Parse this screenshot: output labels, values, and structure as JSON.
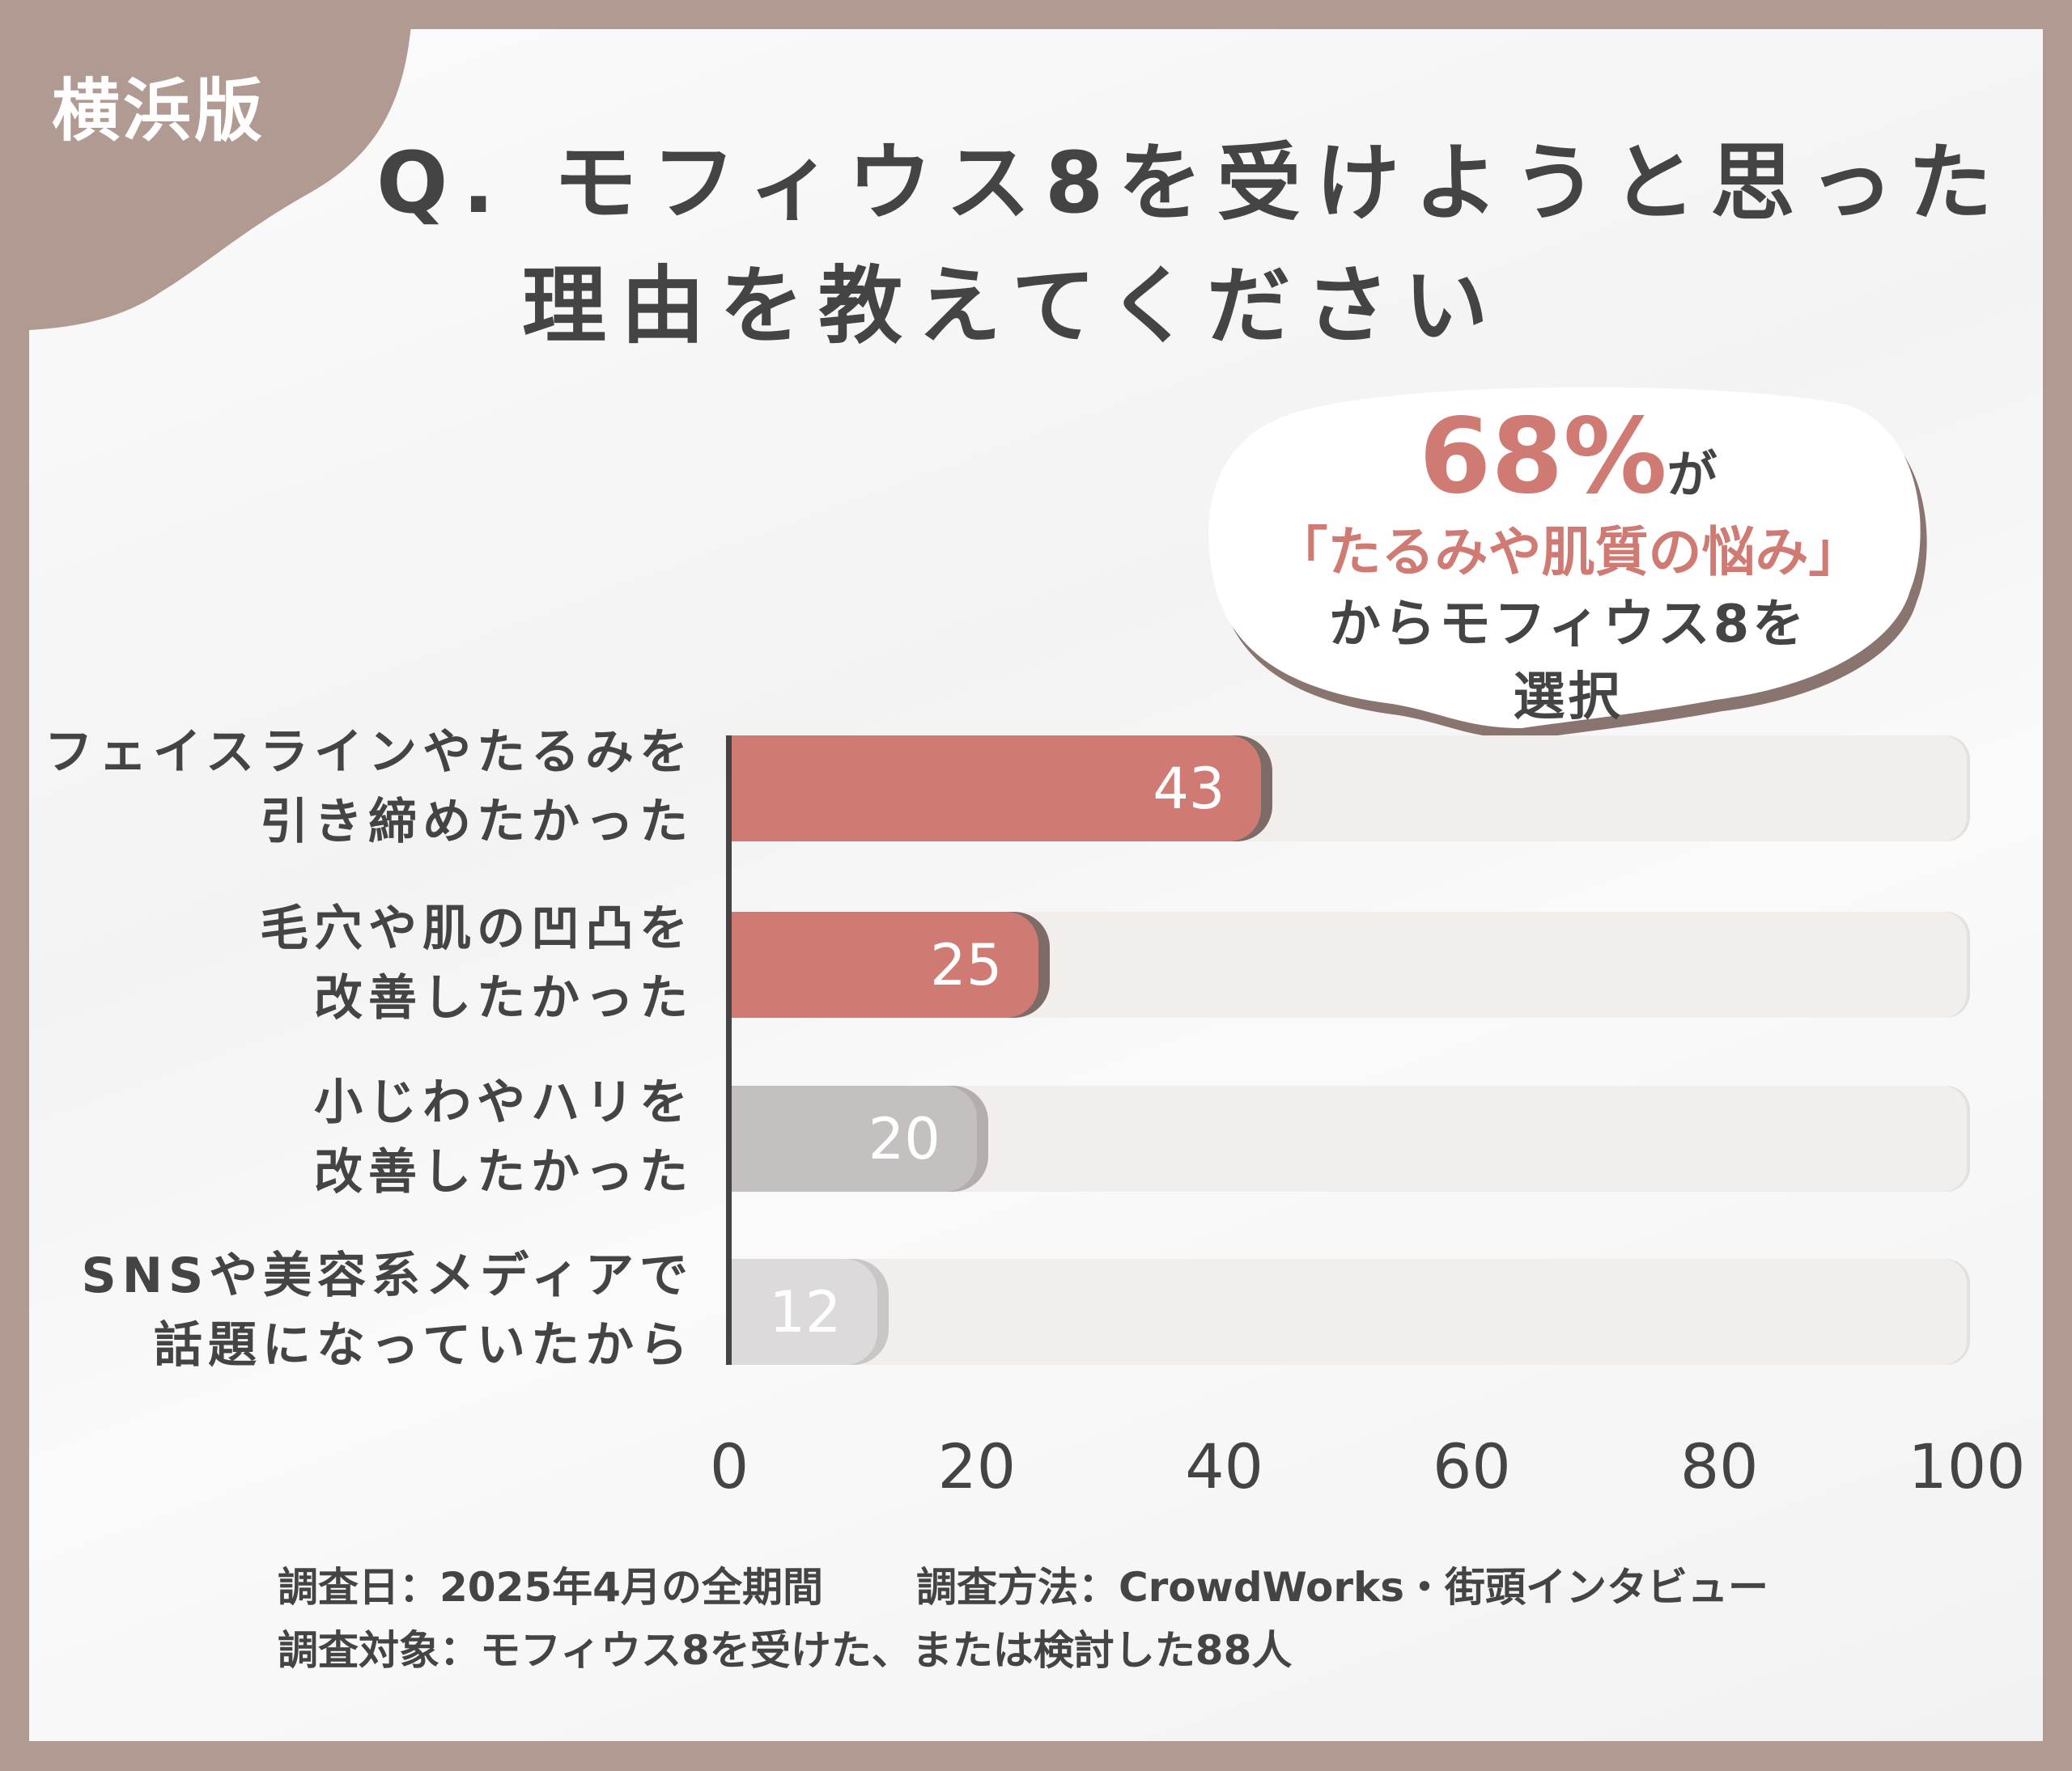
{
  "badge": "横浜版",
  "title": {
    "line1": "Q. モフィウス8を受けようと思った",
    "line2": "理由を教えてください"
  },
  "callout": {
    "percent": "68%",
    "particle": "が",
    "highlight": "「たるみや肌質の悩み」",
    "line3": "からモフィウス8を",
    "line4": "選択"
  },
  "chart_data": {
    "type": "bar",
    "orientation": "horizontal",
    "categories": [
      [
        "フェイスラインやたるみを",
        "引き締めたかった"
      ],
      [
        "毛穴や肌の凹凸を",
        "改善したかった"
      ],
      [
        "小じわやハリを",
        "改善したかった"
      ],
      [
        "SNSや美容系メディアで",
        "話題になっていたから"
      ]
    ],
    "values": [
      43,
      25,
      20,
      12
    ],
    "data_labels": [
      "43",
      "25",
      "20",
      "12"
    ],
    "colors": [
      "#d07a74",
      "#d07a74",
      "#c4c0bf",
      "#dcdadb"
    ],
    "shadow_colors": [
      "#7d6b67",
      "#7d6b67",
      "#b3aeac",
      "#c9c6c6"
    ],
    "xlim": [
      0,
      100
    ],
    "xticks": [
      "0",
      "20",
      "40",
      "60",
      "80",
      "100"
    ],
    "grid": false
  },
  "footer": {
    "date": "調査日：2025年4月の全期間",
    "method": "調査方法：CrowdWorks・街頭インタビュー",
    "target": "調査対象：モフィウス8を受けた、または検討した88人"
  },
  "colors": {
    "frame": "#b09a92",
    "accent": "#d07a74",
    "text": "#444444",
    "track": "#f2eeec"
  }
}
